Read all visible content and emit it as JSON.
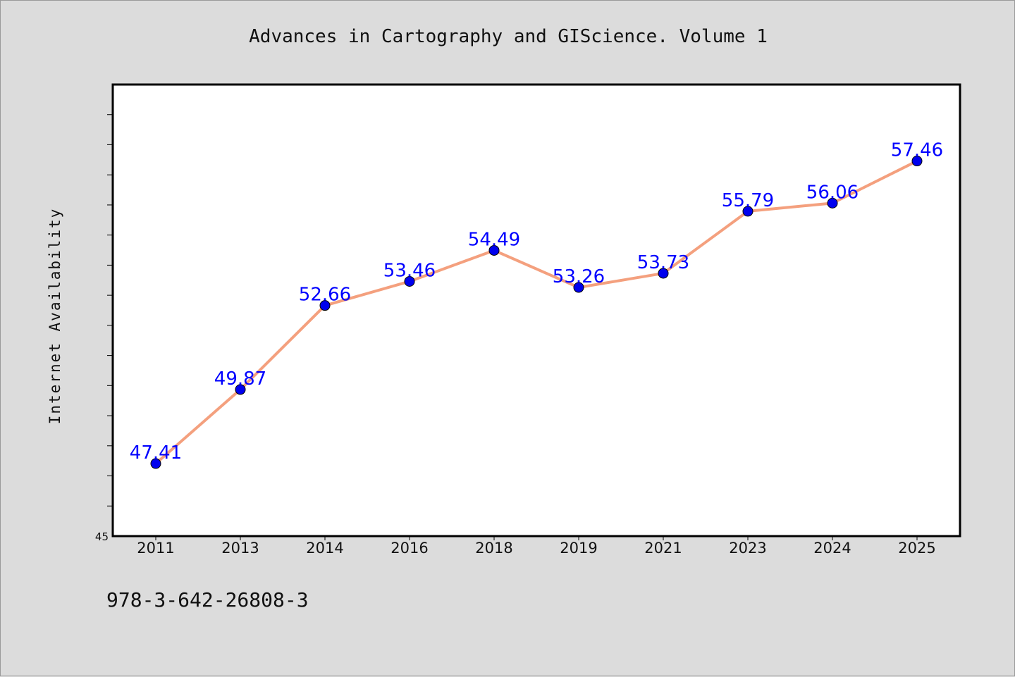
{
  "header": {
    "title": "Advances in Cartography and GIScience. Volume 1"
  },
  "footer": {
    "isbn": "978-3-642-26808-3"
  },
  "chart_data": {
    "type": "line",
    "title": "Advances in Cartography and GIScience. Volume 1",
    "xlabel": "",
    "ylabel": "Internet Availability",
    "categories": [
      "2011",
      "2013",
      "2014",
      "2016",
      "2018",
      "2019",
      "2021",
      "2023",
      "2024",
      "2025"
    ],
    "series": [
      {
        "values": [
          47.41,
          49.87,
          52.66,
          53.46,
          54.49,
          53.26,
          53.73,
          55.79,
          56.06,
          57.46
        ],
        "data_labels": [
          "47.41",
          "49.87",
          "52.66",
          "53.46",
          "54.49",
          "53.26",
          "53.73",
          "55.79",
          "56.06",
          "57.46"
        ]
      }
    ],
    "y_tick_label": "45",
    "ylim": [
      45,
      60
    ],
    "y_minor_tick_step": 1,
    "grid": false,
    "legend": "none",
    "colors": {
      "line": "#f4a07e",
      "marker": "#0000ee",
      "data_label": "#0000ff",
      "plot_background": "#ffffff",
      "page_background": "#dcdcdc"
    }
  }
}
